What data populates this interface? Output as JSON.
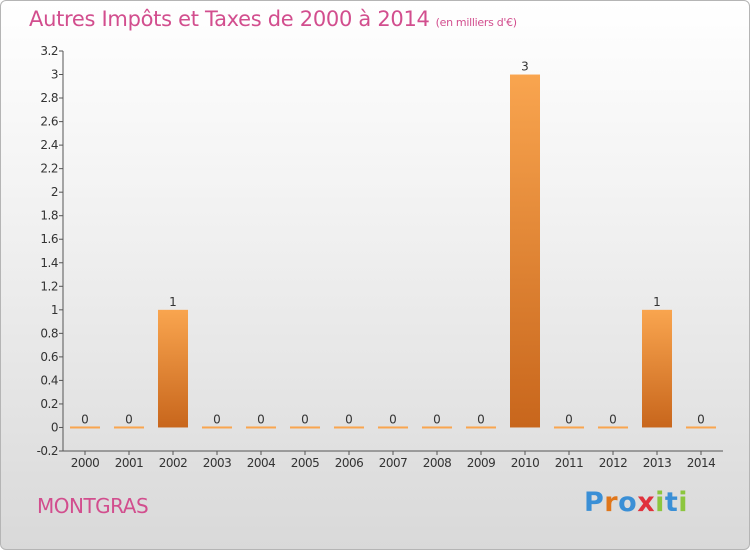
{
  "header": {
    "title": "Autres Impôts et Taxes de 2000 à 2014",
    "unit": "(en milliers d'€)"
  },
  "footer": {
    "place": "MONTGRAS",
    "logo_letters": [
      "P",
      "r",
      "o",
      "x",
      "i",
      "t",
      "i"
    ]
  },
  "colors": {
    "title": "#d24e8e",
    "bar_light": "#f9a54f",
    "bar_dark": "#c8661c",
    "logo": [
      "#3a8fd6",
      "#e0761a",
      "#3a8fd6",
      "#e0323c",
      "#8cc63e",
      "#3a8fd6",
      "#8cc63e"
    ]
  },
  "chart_data": {
    "type": "bar",
    "categories": [
      "2000",
      "2001",
      "2002",
      "2003",
      "2004",
      "2005",
      "2006",
      "2007",
      "2008",
      "2009",
      "2010",
      "2011",
      "2012",
      "2013",
      "2014"
    ],
    "values": [
      0,
      0,
      1,
      0,
      0,
      0,
      0,
      0,
      0,
      0,
      3,
      0,
      0,
      1,
      0
    ],
    "data_labels": [
      "0",
      "0",
      "1",
      "0",
      "0",
      "0",
      "0",
      "0",
      "0",
      "0",
      "3",
      "0",
      "0",
      "1",
      "0"
    ],
    "yticks": [
      "-0.2",
      "0",
      "0.2",
      "0.4",
      "0.6",
      "0.8",
      "1",
      "1.2",
      "1.4",
      "1.6",
      "1.8",
      "2",
      "2.2",
      "2.4",
      "2.6",
      "2.8",
      "3",
      "3.2"
    ],
    "ylim": [
      -0.2,
      3.2
    ],
    "grid": false,
    "legend": "none"
  }
}
